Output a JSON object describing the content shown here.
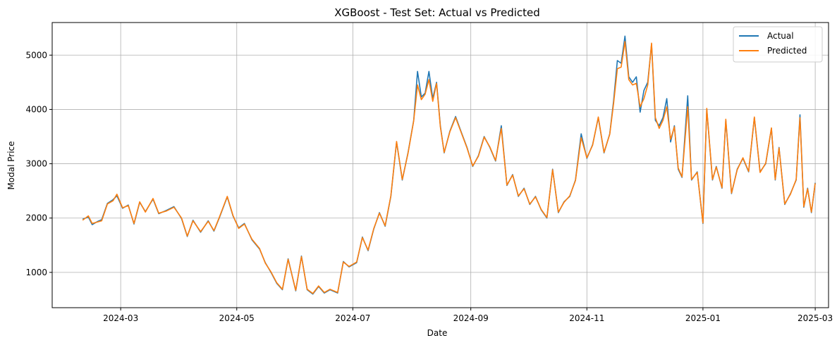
{
  "chart_data": {
    "type": "line",
    "title": "XGBoost - Test Set: Actual vs Predicted",
    "xlabel": "Date",
    "ylabel": "Modal Price",
    "xlim": [
      "2024-01-25",
      "2025-03-08"
    ],
    "ylim": [
      350,
      5600
    ],
    "x_ticks": [
      "2024-03",
      "2024-05",
      "2024-07",
      "2024-09",
      "2024-11",
      "2025-01",
      "2025-03"
    ],
    "y_ticks": [
      1000,
      2000,
      3000,
      4000,
      5000
    ],
    "grid": true,
    "legend_position": "top-right",
    "series": [
      {
        "name": "Actual",
        "color": "#1f77b4",
        "points": [
          [
            "2024-02-10",
            1980
          ],
          [
            "2024-02-13",
            2020
          ],
          [
            "2024-02-15",
            1880
          ],
          [
            "2024-02-18",
            1940
          ],
          [
            "2024-02-20",
            1970
          ],
          [
            "2024-02-23",
            2270
          ],
          [
            "2024-02-26",
            2340
          ],
          [
            "2024-02-28",
            2410
          ],
          [
            "2024-03-02",
            2180
          ],
          [
            "2024-03-05",
            2240
          ],
          [
            "2024-03-08",
            1890
          ],
          [
            "2024-03-11",
            2290
          ],
          [
            "2024-03-14",
            2120
          ],
          [
            "2024-03-18",
            2350
          ],
          [
            "2024-03-21",
            2080
          ],
          [
            "2024-03-25",
            2140
          ],
          [
            "2024-03-29",
            2210
          ],
          [
            "2024-04-02",
            1990
          ],
          [
            "2024-04-05",
            1660
          ],
          [
            "2024-04-08",
            1960
          ],
          [
            "2024-04-12",
            1740
          ],
          [
            "2024-04-16",
            1950
          ],
          [
            "2024-04-19",
            1760
          ],
          [
            "2024-04-22",
            2020
          ],
          [
            "2024-04-26",
            2390
          ],
          [
            "2024-04-29",
            2040
          ],
          [
            "2024-05-02",
            1820
          ],
          [
            "2024-05-05",
            1900
          ],
          [
            "2024-05-09",
            1600
          ],
          [
            "2024-05-13",
            1430
          ],
          [
            "2024-05-16",
            1180
          ],
          [
            "2024-05-19",
            1000
          ],
          [
            "2024-05-22",
            800
          ],
          [
            "2024-05-25",
            680
          ],
          [
            "2024-05-28",
            1250
          ],
          [
            "2024-06-01",
            660
          ],
          [
            "2024-06-04",
            1300
          ],
          [
            "2024-06-07",
            680
          ],
          [
            "2024-06-10",
            600
          ],
          [
            "2024-06-13",
            740
          ],
          [
            "2024-06-16",
            620
          ],
          [
            "2024-06-19",
            680
          ],
          [
            "2024-06-23",
            620
          ],
          [
            "2024-06-26",
            1200
          ],
          [
            "2024-06-29",
            1100
          ],
          [
            "2024-07-03",
            1180
          ],
          [
            "2024-07-06",
            1650
          ],
          [
            "2024-07-09",
            1400
          ],
          [
            "2024-07-12",
            1800
          ],
          [
            "2024-07-15",
            2100
          ],
          [
            "2024-07-18",
            1850
          ],
          [
            "2024-07-21",
            2400
          ],
          [
            "2024-07-24",
            3400
          ],
          [
            "2024-07-27",
            2700
          ],
          [
            "2024-07-30",
            3200
          ],
          [
            "2024-08-02",
            3800
          ],
          [
            "2024-08-04",
            4700
          ],
          [
            "2024-08-06",
            4230
          ],
          [
            "2024-08-08",
            4300
          ],
          [
            "2024-08-10",
            4700
          ],
          [
            "2024-08-12",
            4200
          ],
          [
            "2024-08-14",
            4500
          ],
          [
            "2024-08-16",
            3700
          ],
          [
            "2024-08-18",
            3200
          ],
          [
            "2024-08-21",
            3600
          ],
          [
            "2024-08-24",
            3870
          ],
          [
            "2024-08-27",
            3580
          ],
          [
            "2024-08-30",
            3300
          ],
          [
            "2024-09-02",
            2950
          ],
          [
            "2024-09-05",
            3150
          ],
          [
            "2024-09-08",
            3500
          ],
          [
            "2024-09-11",
            3300
          ],
          [
            "2024-09-14",
            3050
          ],
          [
            "2024-09-17",
            3700
          ],
          [
            "2024-09-20",
            2600
          ],
          [
            "2024-09-23",
            2800
          ],
          [
            "2024-09-26",
            2400
          ],
          [
            "2024-09-29",
            2550
          ],
          [
            "2024-10-02",
            2250
          ],
          [
            "2024-10-05",
            2400
          ],
          [
            "2024-10-08",
            2150
          ],
          [
            "2024-10-11",
            2000
          ],
          [
            "2024-10-14",
            2900
          ],
          [
            "2024-10-17",
            2100
          ],
          [
            "2024-10-20",
            2300
          ],
          [
            "2024-10-23",
            2400
          ],
          [
            "2024-10-26",
            2700
          ],
          [
            "2024-10-29",
            3550
          ],
          [
            "2024-11-01",
            3100
          ],
          [
            "2024-11-04",
            3350
          ],
          [
            "2024-11-07",
            3850
          ],
          [
            "2024-11-10",
            3200
          ],
          [
            "2024-11-13",
            3550
          ],
          [
            "2024-11-15",
            4150
          ],
          [
            "2024-11-17",
            4900
          ],
          [
            "2024-11-19",
            4850
          ],
          [
            "2024-11-21",
            5350
          ],
          [
            "2024-11-23",
            4600
          ],
          [
            "2024-11-25",
            4500
          ],
          [
            "2024-11-27",
            4600
          ],
          [
            "2024-11-29",
            3950
          ],
          [
            "2024-12-01",
            4350
          ],
          [
            "2024-12-03",
            4500
          ],
          [
            "2024-12-05",
            5200
          ],
          [
            "2024-12-07",
            3800
          ],
          [
            "2024-12-09",
            3700
          ],
          [
            "2024-12-11",
            3850
          ],
          [
            "2024-12-13",
            4200
          ],
          [
            "2024-12-15",
            3400
          ],
          [
            "2024-12-17",
            3700
          ],
          [
            "2024-12-19",
            2900
          ],
          [
            "2024-12-21",
            2750
          ],
          [
            "2024-12-24",
            4250
          ],
          [
            "2024-12-26",
            2700
          ],
          [
            "2024-12-29",
            2850
          ],
          [
            "2025-01-01",
            1900
          ],
          [
            "2025-01-03",
            4000
          ],
          [
            "2025-01-06",
            2700
          ],
          [
            "2025-01-08",
            2950
          ],
          [
            "2025-01-11",
            2550
          ],
          [
            "2025-01-13",
            3800
          ],
          [
            "2025-01-16",
            2450
          ],
          [
            "2025-01-19",
            2900
          ],
          [
            "2025-01-22",
            3100
          ],
          [
            "2025-01-25",
            2850
          ],
          [
            "2025-01-28",
            3850
          ],
          [
            "2025-01-31",
            2850
          ],
          [
            "2025-02-03",
            3000
          ],
          [
            "2025-02-06",
            3650
          ],
          [
            "2025-02-08",
            2700
          ],
          [
            "2025-02-10",
            3300
          ],
          [
            "2025-02-13",
            2250
          ],
          [
            "2025-02-16",
            2450
          ],
          [
            "2025-02-19",
            2700
          ],
          [
            "2025-02-21",
            3900
          ],
          [
            "2025-02-23",
            2200
          ],
          [
            "2025-02-25",
            2550
          ],
          [
            "2025-02-27",
            2100
          ],
          [
            "2025-03-01",
            2650
          ]
        ]
      },
      {
        "name": "Predicted",
        "color": "#ff7f0e",
        "points": [
          [
            "2024-02-10",
            1960
          ],
          [
            "2024-02-13",
            2040
          ],
          [
            "2024-02-15",
            1900
          ],
          [
            "2024-02-18",
            1930
          ],
          [
            "2024-02-20",
            1950
          ],
          [
            "2024-02-23",
            2260
          ],
          [
            "2024-02-26",
            2320
          ],
          [
            "2024-02-28",
            2440
          ],
          [
            "2024-03-02",
            2190
          ],
          [
            "2024-03-05",
            2230
          ],
          [
            "2024-03-08",
            1900
          ],
          [
            "2024-03-11",
            2300
          ],
          [
            "2024-03-14",
            2110
          ],
          [
            "2024-03-18",
            2360
          ],
          [
            "2024-03-21",
            2090
          ],
          [
            "2024-03-25",
            2130
          ],
          [
            "2024-03-29",
            2200
          ],
          [
            "2024-04-02",
            2000
          ],
          [
            "2024-04-05",
            1670
          ],
          [
            "2024-04-08",
            1950
          ],
          [
            "2024-04-12",
            1750
          ],
          [
            "2024-04-16",
            1940
          ],
          [
            "2024-04-19",
            1770
          ],
          [
            "2024-04-22",
            2030
          ],
          [
            "2024-04-26",
            2400
          ],
          [
            "2024-04-29",
            2050
          ],
          [
            "2024-05-02",
            1810
          ],
          [
            "2024-05-05",
            1890
          ],
          [
            "2024-05-09",
            1610
          ],
          [
            "2024-05-13",
            1440
          ],
          [
            "2024-05-16",
            1170
          ],
          [
            "2024-05-19",
            1010
          ],
          [
            "2024-05-22",
            810
          ],
          [
            "2024-05-25",
            690
          ],
          [
            "2024-05-28",
            1240
          ],
          [
            "2024-06-01",
            670
          ],
          [
            "2024-06-04",
            1290
          ],
          [
            "2024-06-07",
            690
          ],
          [
            "2024-06-10",
            610
          ],
          [
            "2024-06-13",
            750
          ],
          [
            "2024-06-16",
            630
          ],
          [
            "2024-06-19",
            690
          ],
          [
            "2024-06-23",
            630
          ],
          [
            "2024-06-26",
            1190
          ],
          [
            "2024-06-29",
            1110
          ],
          [
            "2024-07-03",
            1190
          ],
          [
            "2024-07-06",
            1640
          ],
          [
            "2024-07-09",
            1410
          ],
          [
            "2024-07-12",
            1810
          ],
          [
            "2024-07-15",
            2090
          ],
          [
            "2024-07-18",
            1860
          ],
          [
            "2024-07-21",
            2410
          ],
          [
            "2024-07-24",
            3410
          ],
          [
            "2024-07-27",
            2710
          ],
          [
            "2024-07-30",
            3190
          ],
          [
            "2024-08-02",
            3790
          ],
          [
            "2024-08-04",
            4450
          ],
          [
            "2024-08-06",
            4180
          ],
          [
            "2024-08-08",
            4280
          ],
          [
            "2024-08-10",
            4550
          ],
          [
            "2024-08-12",
            4150
          ],
          [
            "2024-08-14",
            4480
          ],
          [
            "2024-08-16",
            3680
          ],
          [
            "2024-08-18",
            3210
          ],
          [
            "2024-08-21",
            3590
          ],
          [
            "2024-08-24",
            3850
          ],
          [
            "2024-08-27",
            3570
          ],
          [
            "2024-08-30",
            3290
          ],
          [
            "2024-09-02",
            2960
          ],
          [
            "2024-09-05",
            3140
          ],
          [
            "2024-09-08",
            3490
          ],
          [
            "2024-09-11",
            3310
          ],
          [
            "2024-09-14",
            3060
          ],
          [
            "2024-09-17",
            3650
          ],
          [
            "2024-09-20",
            2610
          ],
          [
            "2024-09-23",
            2790
          ],
          [
            "2024-09-26",
            2410
          ],
          [
            "2024-09-29",
            2540
          ],
          [
            "2024-10-02",
            2260
          ],
          [
            "2024-10-05",
            2390
          ],
          [
            "2024-10-08",
            2160
          ],
          [
            "2024-10-11",
            2010
          ],
          [
            "2024-10-14",
            2890
          ],
          [
            "2024-10-17",
            2110
          ],
          [
            "2024-10-20",
            2290
          ],
          [
            "2024-10-23",
            2410
          ],
          [
            "2024-10-26",
            2690
          ],
          [
            "2024-10-29",
            3480
          ],
          [
            "2024-11-01",
            3110
          ],
          [
            "2024-11-04",
            3340
          ],
          [
            "2024-11-07",
            3860
          ],
          [
            "2024-11-10",
            3210
          ],
          [
            "2024-11-13",
            3540
          ],
          [
            "2024-11-15",
            4100
          ],
          [
            "2024-11-17",
            4750
          ],
          [
            "2024-11-19",
            4780
          ],
          [
            "2024-11-21",
            5250
          ],
          [
            "2024-11-23",
            4550
          ],
          [
            "2024-11-25",
            4450
          ],
          [
            "2024-11-27",
            4480
          ],
          [
            "2024-11-29",
            4050
          ],
          [
            "2024-12-01",
            4200
          ],
          [
            "2024-12-03",
            4450
          ],
          [
            "2024-12-05",
            5220
          ],
          [
            "2024-12-07",
            3850
          ],
          [
            "2024-12-09",
            3650
          ],
          [
            "2024-12-11",
            3800
          ],
          [
            "2024-12-13",
            4050
          ],
          [
            "2024-12-15",
            3450
          ],
          [
            "2024-12-17",
            3680
          ],
          [
            "2024-12-19",
            2920
          ],
          [
            "2024-12-21",
            2760
          ],
          [
            "2024-12-24",
            4050
          ],
          [
            "2024-12-26",
            2710
          ],
          [
            "2024-12-29",
            2840
          ],
          [
            "2025-01-01",
            1910
          ],
          [
            "2025-01-03",
            4020
          ],
          [
            "2025-01-06",
            2710
          ],
          [
            "2025-01-08",
            2940
          ],
          [
            "2025-01-11",
            2560
          ],
          [
            "2025-01-13",
            3820
          ],
          [
            "2025-01-16",
            2460
          ],
          [
            "2025-01-19",
            2890
          ],
          [
            "2025-01-22",
            3110
          ],
          [
            "2025-01-25",
            2860
          ],
          [
            "2025-01-28",
            3860
          ],
          [
            "2025-01-31",
            2840
          ],
          [
            "2025-02-03",
            3010
          ],
          [
            "2025-02-06",
            3660
          ],
          [
            "2025-02-08",
            2710
          ],
          [
            "2025-02-10",
            3290
          ],
          [
            "2025-02-13",
            2260
          ],
          [
            "2025-02-16",
            2440
          ],
          [
            "2025-02-19",
            2710
          ],
          [
            "2025-02-21",
            3850
          ],
          [
            "2025-02-23",
            2210
          ],
          [
            "2025-02-25",
            2540
          ],
          [
            "2025-02-27",
            2110
          ],
          [
            "2025-03-01",
            2640
          ]
        ]
      }
    ]
  }
}
